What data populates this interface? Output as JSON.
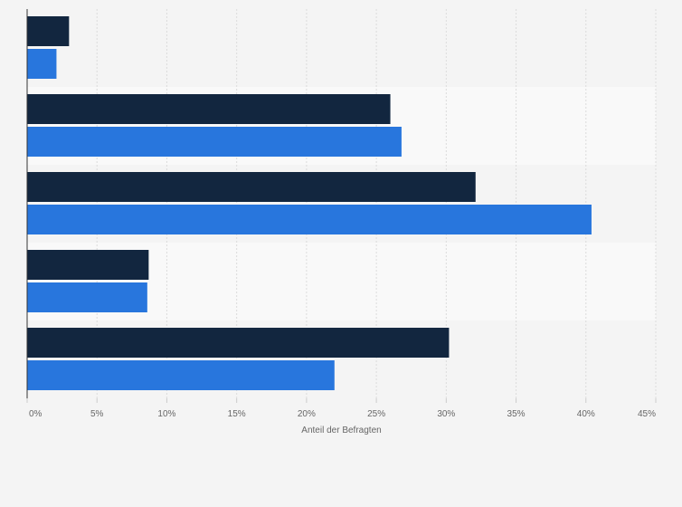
{
  "chart_data": {
    "type": "bar",
    "orientation": "horizontal",
    "xlabel": "Anteil der Befragten",
    "xlim": [
      0,
      45
    ],
    "x_ticks": [
      "0%",
      "5%",
      "10%",
      "15%",
      "20%",
      "25%",
      "30%",
      "35%",
      "40%",
      "45%"
    ],
    "grid": true,
    "categories": [
      "",
      "",
      "",
      "",
      ""
    ],
    "series": [
      {
        "color": "#12263f",
        "values": [
          3.0,
          26.0,
          32.1,
          8.7,
          30.2
        ]
      },
      {
        "color": "#2876dd",
        "values": [
          2.1,
          26.8,
          40.4,
          8.6,
          22.0
        ]
      }
    ],
    "band_colors": [
      "#f4f4f4",
      "#f9f9f9"
    ]
  }
}
